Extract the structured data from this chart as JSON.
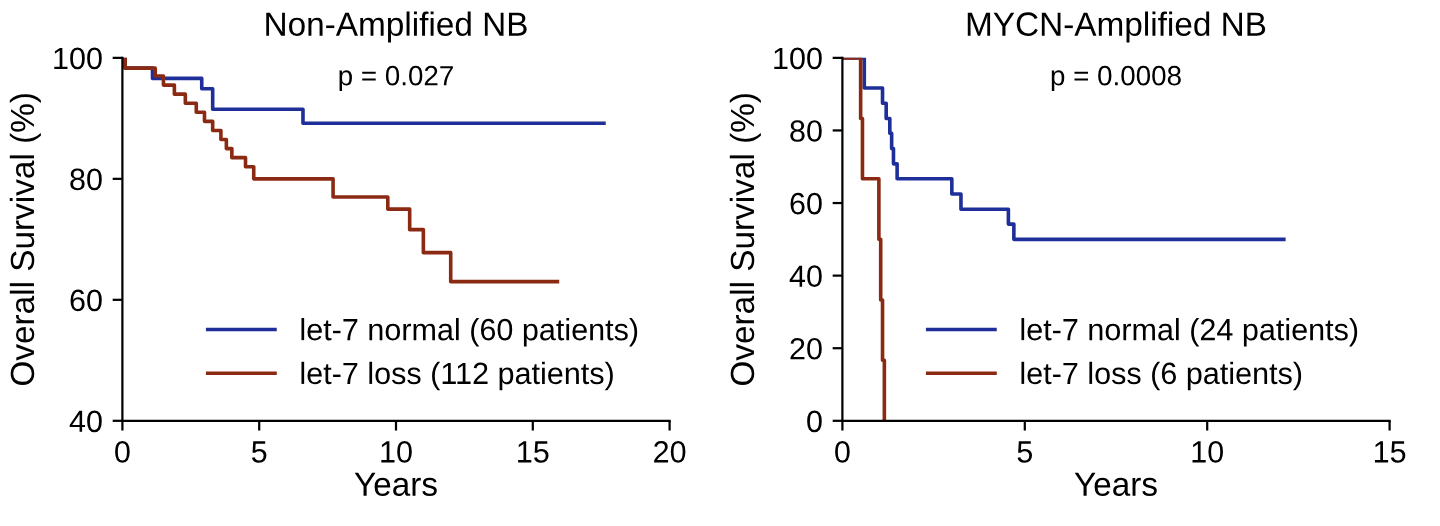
{
  "chart_data": [
    {
      "type": "step",
      "title": "Non-Amplified NB",
      "xlabel": "Years",
      "ylabel": "Overall Survival (%)",
      "annotations": [
        "p = 0.027"
      ],
      "xlim": [
        0,
        20
      ],
      "xticks": [
        0,
        5,
        10,
        15,
        20
      ],
      "ylim": [
        40,
        100
      ],
      "yticks": [
        40,
        60,
        80,
        100
      ],
      "grid": false,
      "legend": "bottom right",
      "series": [
        {
          "name": "let-7 normal (60 patients)",
          "color": "#1f2f9a",
          "x": [
            0,
            0.1,
            1.1,
            2.9,
            3.3,
            6.6,
            17.6
          ],
          "values": [
            100,
            98.3,
            96.6,
            94.9,
            91.5,
            89.2,
            89.2
          ]
        },
        {
          "name": "let-7 loss (112 patients)",
          "color": "#8b2a12",
          "x": [
            0,
            0.1,
            1.2,
            1.5,
            1.9,
            2.3,
            2.7,
            3.0,
            3.3,
            3.6,
            3.8,
            4.0,
            4.5,
            4.8,
            7.7,
            9.7,
            10.5,
            11.0,
            12.0,
            15.9
          ],
          "values": [
            100,
            98.3,
            97,
            95.5,
            94,
            92.5,
            91,
            89.5,
            88,
            86.5,
            85,
            83.5,
            82,
            80,
            77,
            75,
            71.6,
            67.8,
            63,
            63
          ]
        }
      ]
    },
    {
      "type": "step",
      "title": "MYCN-Amplified NB",
      "xlabel": "Years",
      "ylabel": "Overall Survival (%)",
      "annotations": [
        "p = 0.0008"
      ],
      "xlim": [
        0,
        15
      ],
      "xticks": [
        0,
        5,
        10,
        15
      ],
      "ylim": [
        0,
        100
      ],
      "yticks": [
        0,
        20,
        40,
        60,
        80,
        100
      ],
      "grid": false,
      "legend": "bottom right",
      "series": [
        {
          "name": "let-7 normal (24 patients)",
          "color": "#1f2f9a",
          "x": [
            0,
            0.6,
            1.1,
            1.2,
            1.3,
            1.35,
            1.4,
            1.5,
            3.0,
            3.25,
            4.55,
            4.7,
            12.1
          ],
          "values": [
            100,
            91.7,
            87.5,
            83.3,
            79.2,
            75,
            70.8,
            66.7,
            62.5,
            58.3,
            54.2,
            50,
            50
          ]
        },
        {
          "name": "let-7 loss (6 patients)",
          "color": "#8b2a12",
          "x": [
            0,
            0.5,
            0.55,
            1.0,
            1.05,
            1.1,
            1.15
          ],
          "values": [
            100,
            83.3,
            66.7,
            50,
            33.3,
            16.7,
            0
          ]
        }
      ]
    }
  ]
}
